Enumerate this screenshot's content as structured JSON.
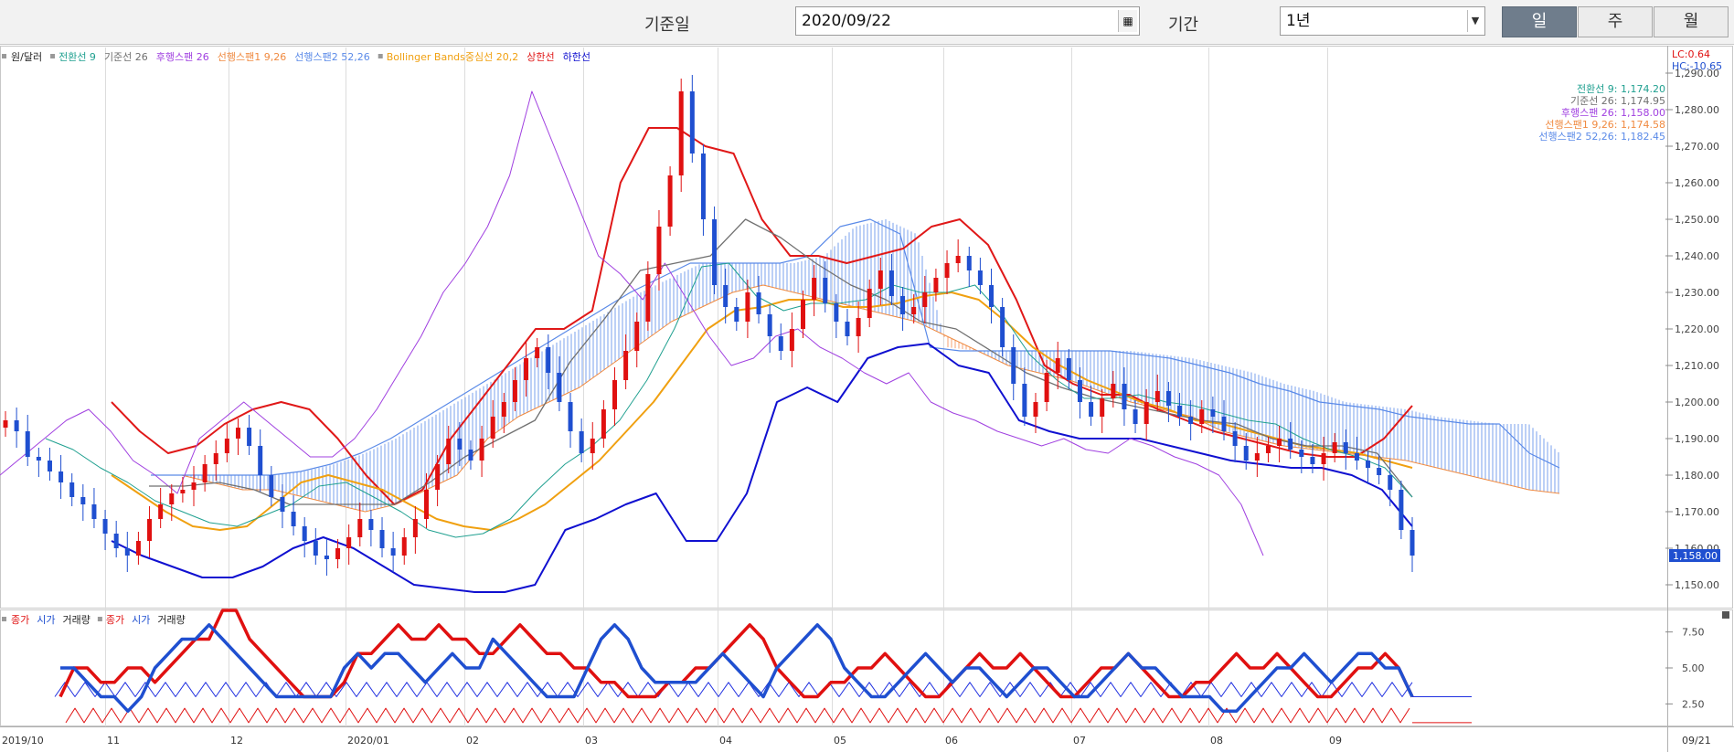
{
  "toolbar": {
    "base_date_label": "기준일",
    "base_date_value": "2020/09/22",
    "period_label": "기간",
    "period_value": "1년",
    "period_buttons": [
      {
        "label": "일",
        "active": true
      },
      {
        "label": "주",
        "active": false
      },
      {
        "label": "월",
        "active": false
      }
    ]
  },
  "colors": {
    "up": "#e01010",
    "down": "#1f4fd0",
    "conversion": "#20a090",
    "base": "#707070",
    "lagging": "#a040e0",
    "leadA": "#f08a40",
    "leadB": "#5a8ae8",
    "bollinger_mid": "#f0a010",
    "upper": "#e01818",
    "lower": "#1010d0"
  },
  "main_panel": {
    "legend": [
      {
        "text": "원/달러",
        "color": "#222222"
      },
      {
        "text": "전환선 9",
        "color": "#20a090"
      },
      {
        "text": "기준선 26",
        "color": "#707070"
      },
      {
        "text": "후행스팬 26",
        "color": "#a040e0"
      },
      {
        "text": "선행스팬1 9,26",
        "color": "#f08a40"
      },
      {
        "text": "선행스팬2 52,26",
        "color": "#5a8ae8"
      },
      {
        "text": "Bollinger Bands중심선 20,2",
        "color": "#f0a010"
      },
      {
        "text": "상한선",
        "color": "#e01818"
      },
      {
        "text": "하한선",
        "color": "#1010d0"
      }
    ],
    "lc_label": "LC:0.64",
    "hc_label": "HC:-10.65",
    "value_labels": [
      {
        "text": "전환선 9: 1,174.20",
        "color": "#20a090"
      },
      {
        "text": "기준선 26: 1,174.95",
        "color": "#707070"
      },
      {
        "text": "후행스팬 26: 1,158.00",
        "color": "#a040e0"
      },
      {
        "text": "선행스팬1 9,26: 1,174.58",
        "color": "#f08a40"
      },
      {
        "text": "선행스팬2 52,26: 1,182.45",
        "color": "#5a8ae8"
      }
    ],
    "current_price_label": "1,158.00"
  },
  "sub_panel": {
    "legend": [
      {
        "text": "종가",
        "color": "#e01010"
      },
      {
        "text": "시가",
        "color": "#1f4fd0"
      },
      {
        "text": "거래량",
        "color": "#222222"
      },
      {
        "text": "종가",
        "color": "#e01010"
      },
      {
        "text": "시가",
        "color": "#1f4fd0"
      },
      {
        "text": "거래량",
        "color": "#222222"
      }
    ]
  },
  "chart_data": [
    {
      "type": "candlestick",
      "title": "",
      "ylim": [
        1144,
        1297
      ],
      "yticks": [
        "1,150.00",
        "1,160.00",
        "1,170.00",
        "1,180.00",
        "1,190.00",
        "1,200.00",
        "1,210.00",
        "1,220.00",
        "1,230.00",
        "1,240.00",
        "1,250.00",
        "1,260.00",
        "1,270.00",
        "1,280.00",
        "1,290.00"
      ],
      "xticks": [
        "2019/10",
        "11",
        "12",
        "2020/01",
        "02",
        "03",
        "04",
        "05",
        "06",
        "07",
        "08",
        "09",
        "09/21"
      ],
      "series": [
        {
          "name": "원/달러",
          "values": [
            1195,
            1192,
            1185,
            1184,
            1181,
            1178,
            1174,
            1172,
            1168,
            1164,
            1160,
            1158,
            1162,
            1168,
            1172,
            1175,
            1176,
            1178,
            1183,
            1186,
            1190,
            1193,
            1188,
            1180,
            1174,
            1170,
            1166,
            1162,
            1158,
            1157,
            1160,
            1163,
            1168,
            1165,
            1160,
            1158,
            1163,
            1168,
            1176,
            1183,
            1190,
            1187,
            1184,
            1190,
            1196,
            1200,
            1206,
            1212,
            1215,
            1208,
            1200,
            1192,
            1186,
            1190,
            1198,
            1206,
            1214,
            1222,
            1235,
            1248,
            1262,
            1285,
            1268,
            1250,
            1232,
            1226,
            1222,
            1230,
            1224,
            1218,
            1214,
            1220,
            1228,
            1234,
            1227,
            1222,
            1218,
            1223,
            1231,
            1236,
            1229,
            1224,
            1226,
            1230,
            1234,
            1238,
            1240,
            1236,
            1232,
            1226,
            1215,
            1205,
            1196,
            1200,
            1208,
            1212,
            1206,
            1200,
            1196,
            1201,
            1205,
            1198,
            1194,
            1200,
            1203,
            1199,
            1196,
            1194,
            1198,
            1196,
            1192,
            1188,
            1184,
            1186,
            1188,
            1190,
            1187,
            1185,
            1183,
            1186,
            1189,
            1186,
            1184,
            1182,
            1180,
            1176,
            1165,
            1158
          ]
        },
        {
          "name": "전환선 9",
          "values": [
            1190,
            1187,
            1182,
            1178,
            1173,
            1170,
            1167,
            1166,
            1169,
            1172,
            1177,
            1178,
            1174,
            1170,
            1165,
            1163,
            1164,
            1168,
            1176,
            1183,
            1188,
            1195,
            1206,
            1220,
            1237,
            1238,
            1229,
            1225,
            1227,
            1227,
            1228,
            1232,
            1230,
            1230,
            1232,
            1224,
            1213,
            1206,
            1201,
            1201,
            1202,
            1200,
            1199,
            1197,
            1195,
            1194,
            1190,
            1187,
            1185,
            1182,
            1174
          ]
        },
        {
          "name": "기준선 26",
          "values": [
            1177,
            1177,
            1178,
            1176,
            1172,
            1172,
            1172,
            1172,
            1178,
            1185,
            1190,
            1195,
            1211,
            1223,
            1236,
            1238,
            1240,
            1250,
            1245,
            1238,
            1232,
            1228,
            1222,
            1220,
            1214,
            1208,
            1204,
            1201,
            1199,
            1197,
            1195,
            1194,
            1190,
            1188,
            1188,
            1186,
            1174
          ]
        },
        {
          "name": "후행스팬 26",
          "values": [
            1180,
            1185,
            1190,
            1195,
            1198,
            1192,
            1184,
            1180,
            1175,
            1190,
            1195,
            1200,
            1195,
            1190,
            1185,
            1185,
            1190,
            1198,
            1208,
            1218,
            1230,
            1238,
            1248,
            1262,
            1285,
            1270,
            1255,
            1240,
            1235,
            1228,
            1238,
            1228,
            1218,
            1210,
            1212,
            1218,
            1220,
            1215,
            1212,
            1208,
            1205,
            1208,
            1200,
            1197,
            1195,
            1192,
            1190,
            1188,
            1190,
            1187,
            1186,
            1190,
            1188,
            1185,
            1183,
            1180,
            1172,
            1158
          ]
        },
        {
          "name": "선행스팬1 9,26",
          "values": [
            1180,
            1180,
            1178,
            1176,
            1176,
            1174,
            1172,
            1170,
            1172,
            1176,
            1180,
            1190,
            1196,
            1200,
            1204,
            1210,
            1216,
            1222,
            1226,
            1230,
            1232,
            1230,
            1228,
            1226,
            1224,
            1222,
            1218,
            1214,
            1210,
            1208,
            1206,
            1203,
            1200,
            1198,
            1196,
            1192,
            1190,
            1188,
            1187,
            1186,
            1185,
            1184,
            1182,
            1180,
            1178,
            1176,
            1175
          ]
        },
        {
          "name": "선행스팬2 52,26",
          "values": [
            1180,
            1180,
            1180,
            1180,
            1180,
            1181,
            1183,
            1186,
            1190,
            1195,
            1200,
            1205,
            1210,
            1215,
            1220,
            1225,
            1230,
            1234,
            1238,
            1238,
            1238,
            1238,
            1240,
            1248,
            1250,
            1246,
            1215,
            1214,
            1214,
            1214,
            1214,
            1214,
            1214,
            1213,
            1212,
            1210,
            1208,
            1205,
            1203,
            1200,
            1199,
            1198,
            1196,
            1195,
            1194,
            1194,
            1186,
            1182
          ]
        },
        {
          "name": "Bollinger Bands중심선 20,2",
          "values": [
            1180,
            1175,
            1170,
            1166,
            1165,
            1166,
            1172,
            1178,
            1180,
            1178,
            1176,
            1172,
            1168,
            1166,
            1165,
            1168,
            1172,
            1178,
            1184,
            1192,
            1200,
            1210,
            1220,
            1225,
            1226,
            1228,
            1228,
            1226,
            1226,
            1227,
            1229,
            1230,
            1228,
            1222,
            1215,
            1210,
            1206,
            1203,
            1200,
            1198,
            1195,
            1194,
            1192,
            1190,
            1188,
            1187,
            1186,
            1184,
            1182
          ]
        },
        {
          "name": "상한선",
          "values": [
            1200,
            1192,
            1186,
            1188,
            1194,
            1198,
            1200,
            1198,
            1190,
            1180,
            1172,
            1176,
            1190,
            1200,
            1210,
            1220,
            1220,
            1225,
            1260,
            1275,
            1275,
            1270,
            1268,
            1250,
            1240,
            1240,
            1238,
            1240,
            1242,
            1248,
            1250,
            1243,
            1228,
            1210,
            1205,
            1202,
            1202,
            1198,
            1195,
            1192,
            1190,
            1188,
            1186,
            1185,
            1185,
            1190,
            1199
          ]
        },
        {
          "name": "하한선",
          "values": [
            1162,
            1158,
            1155,
            1152,
            1152,
            1155,
            1160,
            1163,
            1160,
            1155,
            1150,
            1149,
            1148,
            1148,
            1150,
            1165,
            1168,
            1172,
            1175,
            1162,
            1162,
            1175,
            1200,
            1204,
            1200,
            1212,
            1215,
            1216,
            1210,
            1208,
            1195,
            1192,
            1190,
            1190,
            1190,
            1188,
            1186,
            1184,
            1183,
            1182,
            1182,
            1180,
            1176,
            1166
          ]
        }
      ]
    },
    {
      "type": "line",
      "title": "",
      "ylim": [
        1,
        9
      ],
      "yticks": [
        "2.50",
        "5.00",
        "7.50"
      ],
      "series": [
        {
          "name": "종가",
          "values": [
            3,
            5,
            5,
            4,
            4,
            5,
            5,
            4,
            5,
            6,
            7,
            7,
            9,
            9,
            7,
            6,
            5,
            4,
            3,
            3,
            3,
            4,
            6,
            6,
            7,
            8,
            7,
            7,
            8,
            7,
            7,
            6,
            6,
            7,
            8,
            7,
            6,
            6,
            5,
            5,
            4,
            4,
            3,
            3,
            3,
            4,
            4,
            5,
            5,
            6,
            7,
            8,
            7,
            5,
            4,
            3,
            3,
            4,
            4,
            5,
            5,
            6,
            5,
            4,
            3,
            3,
            4,
            5,
            6,
            5,
            5,
            6,
            5,
            4,
            3,
            3,
            4,
            5,
            5,
            6,
            5,
            4,
            3,
            3,
            4,
            4,
            5,
            6,
            5,
            5,
            6,
            5,
            4,
            3,
            3,
            4,
            5,
            5,
            6,
            5,
            3
          ]
        },
        {
          "name": "시가",
          "values": [
            5,
            5,
            4,
            3,
            3,
            2,
            3,
            5,
            6,
            7,
            7,
            8,
            7,
            6,
            5,
            4,
            3,
            3,
            3,
            3,
            3,
            5,
            6,
            5,
            6,
            6,
            5,
            4,
            5,
            6,
            5,
            5,
            7,
            6,
            5,
            4,
            3,
            3,
            3,
            5,
            7,
            8,
            7,
            5,
            4,
            4,
            4,
            4,
            5,
            6,
            5,
            4,
            3,
            5,
            6,
            7,
            8,
            7,
            5,
            4,
            3,
            3,
            4,
            5,
            6,
            5,
            4,
            5,
            5,
            4,
            3,
            4,
            5,
            5,
            4,
            3,
            3,
            4,
            5,
            6,
            5,
            5,
            4,
            3,
            3,
            3,
            2,
            2,
            3,
            4,
            5,
            5,
            6,
            5,
            4,
            5,
            6,
            6,
            5,
            5,
            3
          ]
        }
      ]
    }
  ]
}
